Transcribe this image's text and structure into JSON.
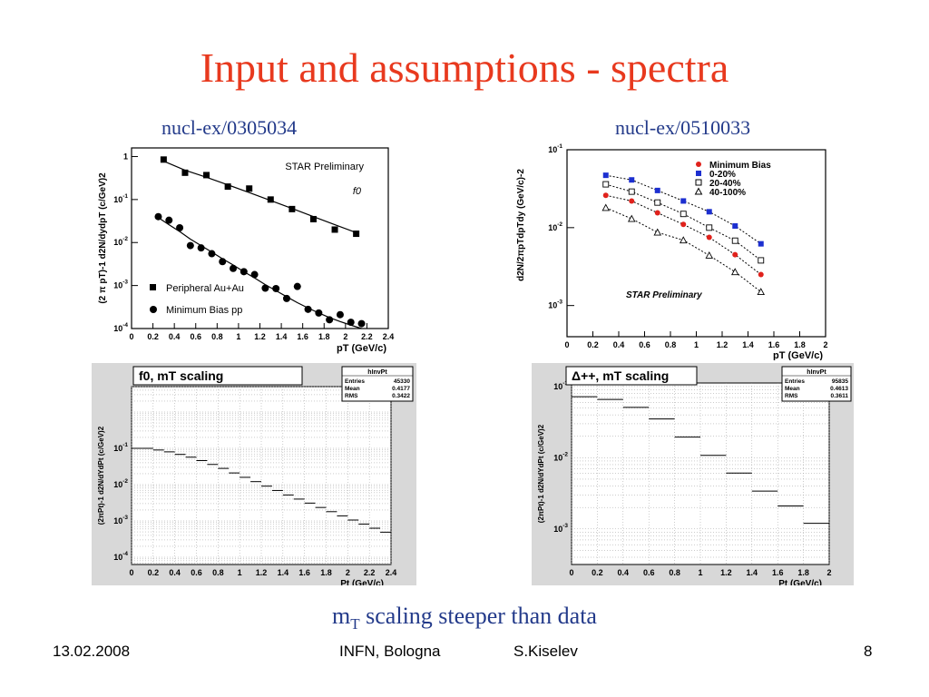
{
  "slide": {
    "title": "Input and assumptions - spectra",
    "ref_left": "nucl-ex/0305034",
    "ref_right": "nucl-ex/0510033",
    "conclusion_main": "m",
    "conclusion_sub": "T",
    "conclusion_rest": " scaling steeper than data"
  },
  "footer": {
    "date": "13.02.2008",
    "institution": "INFN, Bologna",
    "author": "S.Kiselev",
    "page": "8"
  },
  "colors": {
    "title": "#e8391e",
    "text_blue": "#233a8a",
    "panel_bg": "#d8d8d8",
    "red": "#e0221c",
    "blue": "#1c2fd0"
  },
  "chart_data": [
    {
      "type": "scatter",
      "title": "STAR Preliminary",
      "subtitle": "f0",
      "xlabel": "pT (GeV/c)",
      "ylabel": "(2 π pT)-1 d2N/dydpT (c/GeV)2",
      "xlim": [
        0,
        2.4
      ],
      "ylim_log10": [
        -4,
        0.2
      ],
      "x_ticks": [
        "0",
        "0.2",
        "0.4",
        "0.6",
        "0.8",
        "1",
        "1.2",
        "1.4",
        "1.6",
        "1.8",
        "2",
        "2.2",
        "2.4"
      ],
      "y_ticks": [
        "1",
        "10-1",
        "10-2",
        "10-3",
        "10-4"
      ],
      "legend_position": "bottom-left",
      "series": [
        {
          "name": "Peripheral Au+Au",
          "marker": "square",
          "x": [
            0.3,
            0.5,
            0.7,
            0.9,
            1.1,
            1.3,
            1.5,
            1.7,
            1.9,
            2.1
          ],
          "y": [
            0.85,
            0.42,
            0.37,
            0.2,
            0.18,
            0.1,
            0.06,
            0.035,
            0.02,
            0.016
          ],
          "fit_y": [
            0.78,
            0.48,
            0.33,
            0.22,
            0.145,
            0.095,
            0.062,
            0.04,
            0.026,
            0.017
          ]
        },
        {
          "name": "Minimum Bias pp",
          "marker": "circle",
          "x": [
            0.25,
            0.35,
            0.45,
            0.55,
            0.65,
            0.75,
            0.85,
            0.95,
            1.05,
            1.15,
            1.25,
            1.35,
            1.45,
            1.55,
            1.65,
            1.75,
            1.85,
            1.95,
            2.05,
            2.15
          ],
          "y": [
            0.04,
            0.033,
            0.022,
            0.0085,
            0.0075,
            0.0055,
            0.0036,
            0.0025,
            0.0021,
            0.0018,
            0.00087,
            0.00085,
            0.0005,
            0.00095,
            0.00028,
            0.00023,
            0.00016,
            0.00021,
            0.00014,
            0.00013
          ],
          "fit_y": [
            0.038,
            0.026,
            0.018,
            0.012,
            0.0085,
            0.006,
            0.0042,
            0.003,
            0.0021,
            0.0015,
            0.00105,
            0.00076,
            0.00055,
            0.0004,
            0.0003,
            0.00023,
            0.00018,
            0.000145,
            0.00012,
            0.0001
          ]
        }
      ]
    },
    {
      "type": "scatter",
      "title": "STAR Preliminary",
      "xlabel": "pT (GeV/c)",
      "ylabel": "d2N/2πpTdpTdy (GeV/c)-2",
      "xlim": [
        0,
        2
      ],
      "ylim_log10": [
        -3.4,
        -1
      ],
      "x_ticks": [
        "0",
        "0.2",
        "0.4",
        "0.6",
        "0.8",
        "1",
        "1.2",
        "1.4",
        "1.6",
        "1.8",
        "2"
      ],
      "y_ticks": [
        "10-1",
        "10-2",
        "10-3"
      ],
      "legend_position": "top-right",
      "series": [
        {
          "name": "Minimum Bias",
          "marker": "filled-circle",
          "color": "#e0221c",
          "x": [
            0.3,
            0.5,
            0.7,
            0.9,
            1.1,
            1.3,
            1.5
          ],
          "y": [
            0.026,
            0.022,
            0.0155,
            0.011,
            0.0075,
            0.0045,
            0.0025
          ]
        },
        {
          "name": "0-20%",
          "marker": "filled-square",
          "color": "#1c2fd0",
          "x": [
            0.3,
            0.5,
            0.7,
            0.9,
            1.1,
            1.3,
            1.5
          ],
          "y": [
            0.047,
            0.041,
            0.03,
            0.022,
            0.016,
            0.0105,
            0.0062
          ]
        },
        {
          "name": "20-40%",
          "marker": "open-square",
          "color": "#000000",
          "x": [
            0.3,
            0.5,
            0.7,
            0.9,
            1.1,
            1.3,
            1.5
          ],
          "y": [
            0.036,
            0.029,
            0.021,
            0.015,
            0.01,
            0.0068,
            0.0038
          ]
        },
        {
          "name": "40-100%",
          "marker": "open-triangle",
          "color": "#000000",
          "x": [
            0.3,
            0.5,
            0.7,
            0.9,
            1.1,
            1.3,
            1.5
          ],
          "y": [
            0.018,
            0.013,
            0.0087,
            0.0069,
            0.0044,
            0.0027,
            0.0015
          ]
        }
      ]
    },
    {
      "type": "line",
      "title": "f0, mT scaling",
      "stats": {
        "name": "hInvPt",
        "Entries": "45330",
        "Mean": "0.4177",
        "RMS": "0.3422"
      },
      "xlabel": "Pt (GeV/c)",
      "ylabel": "(2πPt)-1 d2N/dYdPt (c/GeV)2",
      "xlim": [
        0,
        2.4
      ],
      "ylim_log10": [
        -4.2,
        0.7
      ],
      "x_ticks": [
        "0",
        "0.2",
        "0.4",
        "0.6",
        "0.8",
        "1",
        "1.2",
        "1.4",
        "1.6",
        "1.8",
        "2",
        "2.2",
        "2.4"
      ],
      "y_ticks": [
        "10-1",
        "10-2",
        "10-3",
        "10-4"
      ],
      "bin_width": 0.1,
      "x": [
        0.05,
        0.15,
        0.25,
        0.35,
        0.45,
        0.55,
        0.65,
        0.75,
        0.85,
        0.95,
        1.05,
        1.15,
        1.25,
        1.35,
        1.45,
        1.55,
        1.65,
        1.75,
        1.85,
        1.95,
        2.05,
        2.15,
        2.25,
        2.35
      ],
      "y": [
        0.1,
        0.1,
        0.09,
        0.08,
        0.068,
        0.057,
        0.046,
        0.036,
        0.028,
        0.021,
        0.0159,
        0.0121,
        0.0091,
        0.0069,
        0.0052,
        0.004,
        0.0031,
        0.00235,
        0.0018,
        0.00138,
        0.00106,
        0.00082,
        0.00063,
        0.00049
      ]
    },
    {
      "type": "line",
      "title": "Δ++, mT scaling",
      "stats": {
        "name": "hInvPt",
        "Entries": "95835",
        "Mean": "0.4613",
        "RMS": "0.3611"
      },
      "xlabel": "Pt (GeV/c)",
      "ylabel": "(2πPt)-1 d2N/dYdPt (c/GeV)2",
      "xlim": [
        0,
        2
      ],
      "ylim_log10": [
        -3.5,
        -0.95
      ],
      "x_ticks": [
        "0",
        "0.2",
        "0.4",
        "0.6",
        "0.8",
        "1",
        "1.2",
        "1.4",
        "1.6",
        "1.8",
        "2"
      ],
      "y_ticks": [
        "10-1",
        "10-2",
        "10-3"
      ],
      "bin_width": 0.2,
      "x": [
        0.1,
        0.3,
        0.5,
        0.7,
        0.9,
        1.1,
        1.3,
        1.5,
        1.7,
        1.9
      ],
      "y": [
        0.072,
        0.066,
        0.051,
        0.035,
        0.0195,
        0.0108,
        0.0061,
        0.0034,
        0.0021,
        0.0012
      ]
    }
  ]
}
